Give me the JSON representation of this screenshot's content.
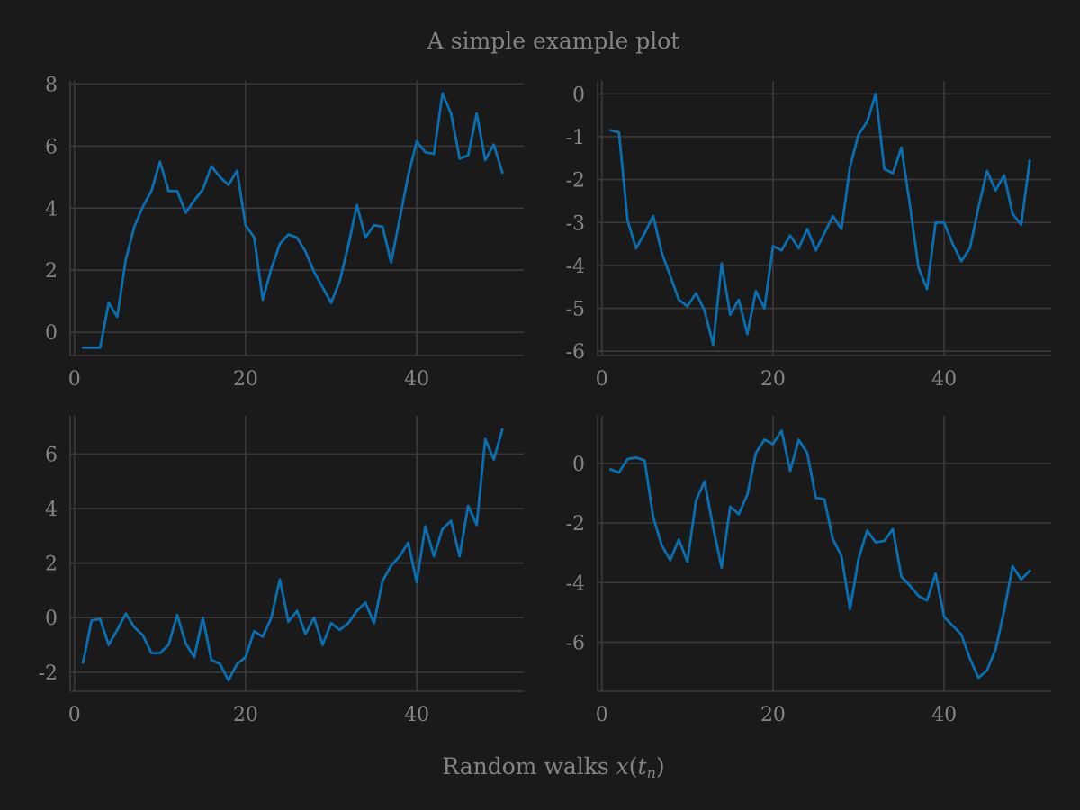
{
  "figure": {
    "title": "A simple example plot",
    "xlabel_prefix": "Random walks ",
    "xlabel_var": "x",
    "xlabel_open": "(",
    "xlabel_t": "t",
    "xlabel_n": "n",
    "xlabel_close": ")",
    "background": "#1a1a1a",
    "line_color": "#0a6fb0",
    "text_color": "#858585",
    "grid_color": "#3b3b3b"
  },
  "chart_data": [
    {
      "type": "line",
      "grid": true,
      "xlim": [
        -0.5,
        52.5
      ],
      "ylim": [
        -0.75,
        8.1
      ],
      "xticks": [
        0,
        20,
        40
      ],
      "xtick_labels": [
        "0",
        "20",
        "40"
      ],
      "yticks": [
        0,
        2,
        4,
        6,
        8
      ],
      "ytick_labels": [
        "0",
        "2",
        "4",
        "6",
        "8"
      ],
      "x": [
        1,
        2,
        3,
        4,
        5,
        6,
        7,
        8,
        9,
        10,
        11,
        12,
        13,
        14,
        15,
        16,
        17,
        18,
        19,
        20,
        21,
        22,
        23,
        24,
        25,
        26,
        27,
        28,
        29,
        30,
        31,
        32,
        33,
        34,
        35,
        36,
        37,
        38,
        39,
        40,
        41,
        42,
        43,
        44,
        45,
        46,
        47,
        48,
        49,
        50
      ],
      "y": [
        -0.5,
        -0.5,
        -0.5,
        0.95,
        0.5,
        2.35,
        3.4,
        4.05,
        4.55,
        5.5,
        4.55,
        4.55,
        3.85,
        4.25,
        4.6,
        5.35,
        5.0,
        4.75,
        5.2,
        3.45,
        3.05,
        1.05,
        2.05,
        2.85,
        3.15,
        3.05,
        2.6,
        1.95,
        1.45,
        0.95,
        1.65,
        2.8,
        4.1,
        3.05,
        3.45,
        3.4,
        2.25,
        3.65,
        5.05,
        6.15,
        5.8,
        5.75,
        7.7,
        7.05,
        5.6,
        5.7,
        7.05,
        5.55,
        6.05,
        5.15
      ]
    },
    {
      "type": "line",
      "grid": true,
      "xlim": [
        -0.5,
        52.5
      ],
      "ylim": [
        -6.1,
        0.3
      ],
      "xticks": [
        0,
        20,
        40
      ],
      "xtick_labels": [
        "0",
        "20",
        "40"
      ],
      "yticks": [
        0,
        -1,
        -2,
        -3,
        -4,
        -5,
        -6
      ],
      "ytick_labels": [
        "0",
        "-1",
        "-2",
        "-3",
        "-4",
        "-5",
        "-6"
      ],
      "x": [
        1,
        2,
        3,
        4,
        5,
        6,
        7,
        8,
        9,
        10,
        11,
        12,
        13,
        14,
        15,
        16,
        17,
        18,
        19,
        20,
        21,
        22,
        23,
        24,
        25,
        26,
        27,
        28,
        29,
        30,
        31,
        32,
        33,
        34,
        35,
        36,
        37,
        38,
        39,
        40,
        41,
        42,
        43,
        44,
        45,
        46,
        47,
        48,
        49,
        50
      ],
      "y": [
        -0.85,
        -0.9,
        -2.95,
        -3.6,
        -3.25,
        -2.85,
        -3.7,
        -4.25,
        -4.8,
        -4.95,
        -4.65,
        -5.05,
        -5.85,
        -3.95,
        -5.15,
        -4.8,
        -5.6,
        -4.6,
        -5.0,
        -3.55,
        -3.65,
        -3.3,
        -3.6,
        -3.15,
        -3.65,
        -3.25,
        -2.85,
        -3.15,
        -1.7,
        -0.95,
        -0.65,
        0.0,
        -1.75,
        -1.85,
        -1.25,
        -2.6,
        -4.05,
        -4.55,
        -3.0,
        -3.0,
        -3.5,
        -3.9,
        -3.6,
        -2.65,
        -1.8,
        -2.25,
        -1.9,
        -2.8,
        -3.05,
        -1.55
      ]
    },
    {
      "type": "line",
      "grid": true,
      "xlim": [
        -0.5,
        52.5
      ],
      "ylim": [
        -2.7,
        7.4
      ],
      "xticks": [
        0,
        20,
        40
      ],
      "xtick_labels": [
        "0",
        "20",
        "40"
      ],
      "yticks": [
        -2,
        0,
        2,
        4,
        6
      ],
      "ytick_labels": [
        "-2",
        "0",
        "2",
        "4",
        "6"
      ],
      "x": [
        1,
        2,
        3,
        4,
        5,
        6,
        7,
        8,
        9,
        10,
        11,
        12,
        13,
        14,
        15,
        16,
        17,
        18,
        19,
        20,
        21,
        22,
        23,
        24,
        25,
        26,
        27,
        28,
        29,
        30,
        31,
        32,
        33,
        34,
        35,
        36,
        37,
        38,
        39,
        40,
        41,
        42,
        43,
        44,
        45,
        46,
        47,
        48,
        49,
        50
      ],
      "y": [
        -1.65,
        -0.1,
        -0.05,
        -1.0,
        -0.45,
        0.15,
        -0.35,
        -0.65,
        -1.3,
        -1.3,
        -1.0,
        0.1,
        -0.95,
        -1.45,
        0.0,
        -1.55,
        -1.7,
        -2.3,
        -1.7,
        -1.45,
        -0.5,
        -0.7,
        0.0,
        1.4,
        -0.15,
        0.25,
        -0.6,
        0.0,
        -1.0,
        -0.2,
        -0.45,
        -0.2,
        0.25,
        0.55,
        -0.2,
        1.35,
        1.9,
        2.25,
        2.75,
        1.3,
        3.35,
        2.25,
        3.25,
        3.55,
        2.25,
        4.1,
        3.4,
        6.55,
        5.8,
        6.9
      ]
    },
    {
      "type": "line",
      "grid": true,
      "xlim": [
        -0.5,
        52.5
      ],
      "ylim": [
        -7.65,
        1.6
      ],
      "xticks": [
        0,
        20,
        40
      ],
      "xtick_labels": [
        "0",
        "20",
        "40"
      ],
      "yticks": [
        0,
        -2,
        -4,
        -6
      ],
      "ytick_labels": [
        "0",
        "-2",
        "-4",
        "-6"
      ],
      "x": [
        1,
        2,
        3,
        4,
        5,
        6,
        7,
        8,
        9,
        10,
        11,
        12,
        13,
        14,
        15,
        16,
        17,
        18,
        19,
        20,
        21,
        22,
        23,
        24,
        25,
        26,
        27,
        28,
        29,
        30,
        31,
        32,
        33,
        34,
        35,
        36,
        37,
        38,
        39,
        40,
        41,
        42,
        43,
        44,
        45,
        46,
        47,
        48,
        49,
        50
      ],
      "y": [
        -0.2,
        -0.3,
        0.15,
        0.2,
        0.1,
        -1.8,
        -2.75,
        -3.25,
        -2.55,
        -3.3,
        -1.25,
        -0.6,
        -2.15,
        -3.5,
        -1.45,
        -1.7,
        -1.05,
        0.35,
        0.8,
        0.65,
        1.1,
        -0.25,
        0.8,
        0.35,
        -1.15,
        -1.2,
        -2.55,
        -3.1,
        -4.9,
        -3.2,
        -2.25,
        -2.65,
        -2.6,
        -2.2,
        -3.8,
        -4.1,
        -4.45,
        -4.6,
        -3.7,
        -5.15,
        -5.45,
        -5.75,
        -6.55,
        -7.2,
        -6.95,
        -6.25,
        -4.95,
        -3.45,
        -3.9,
        -3.6
      ]
    }
  ]
}
